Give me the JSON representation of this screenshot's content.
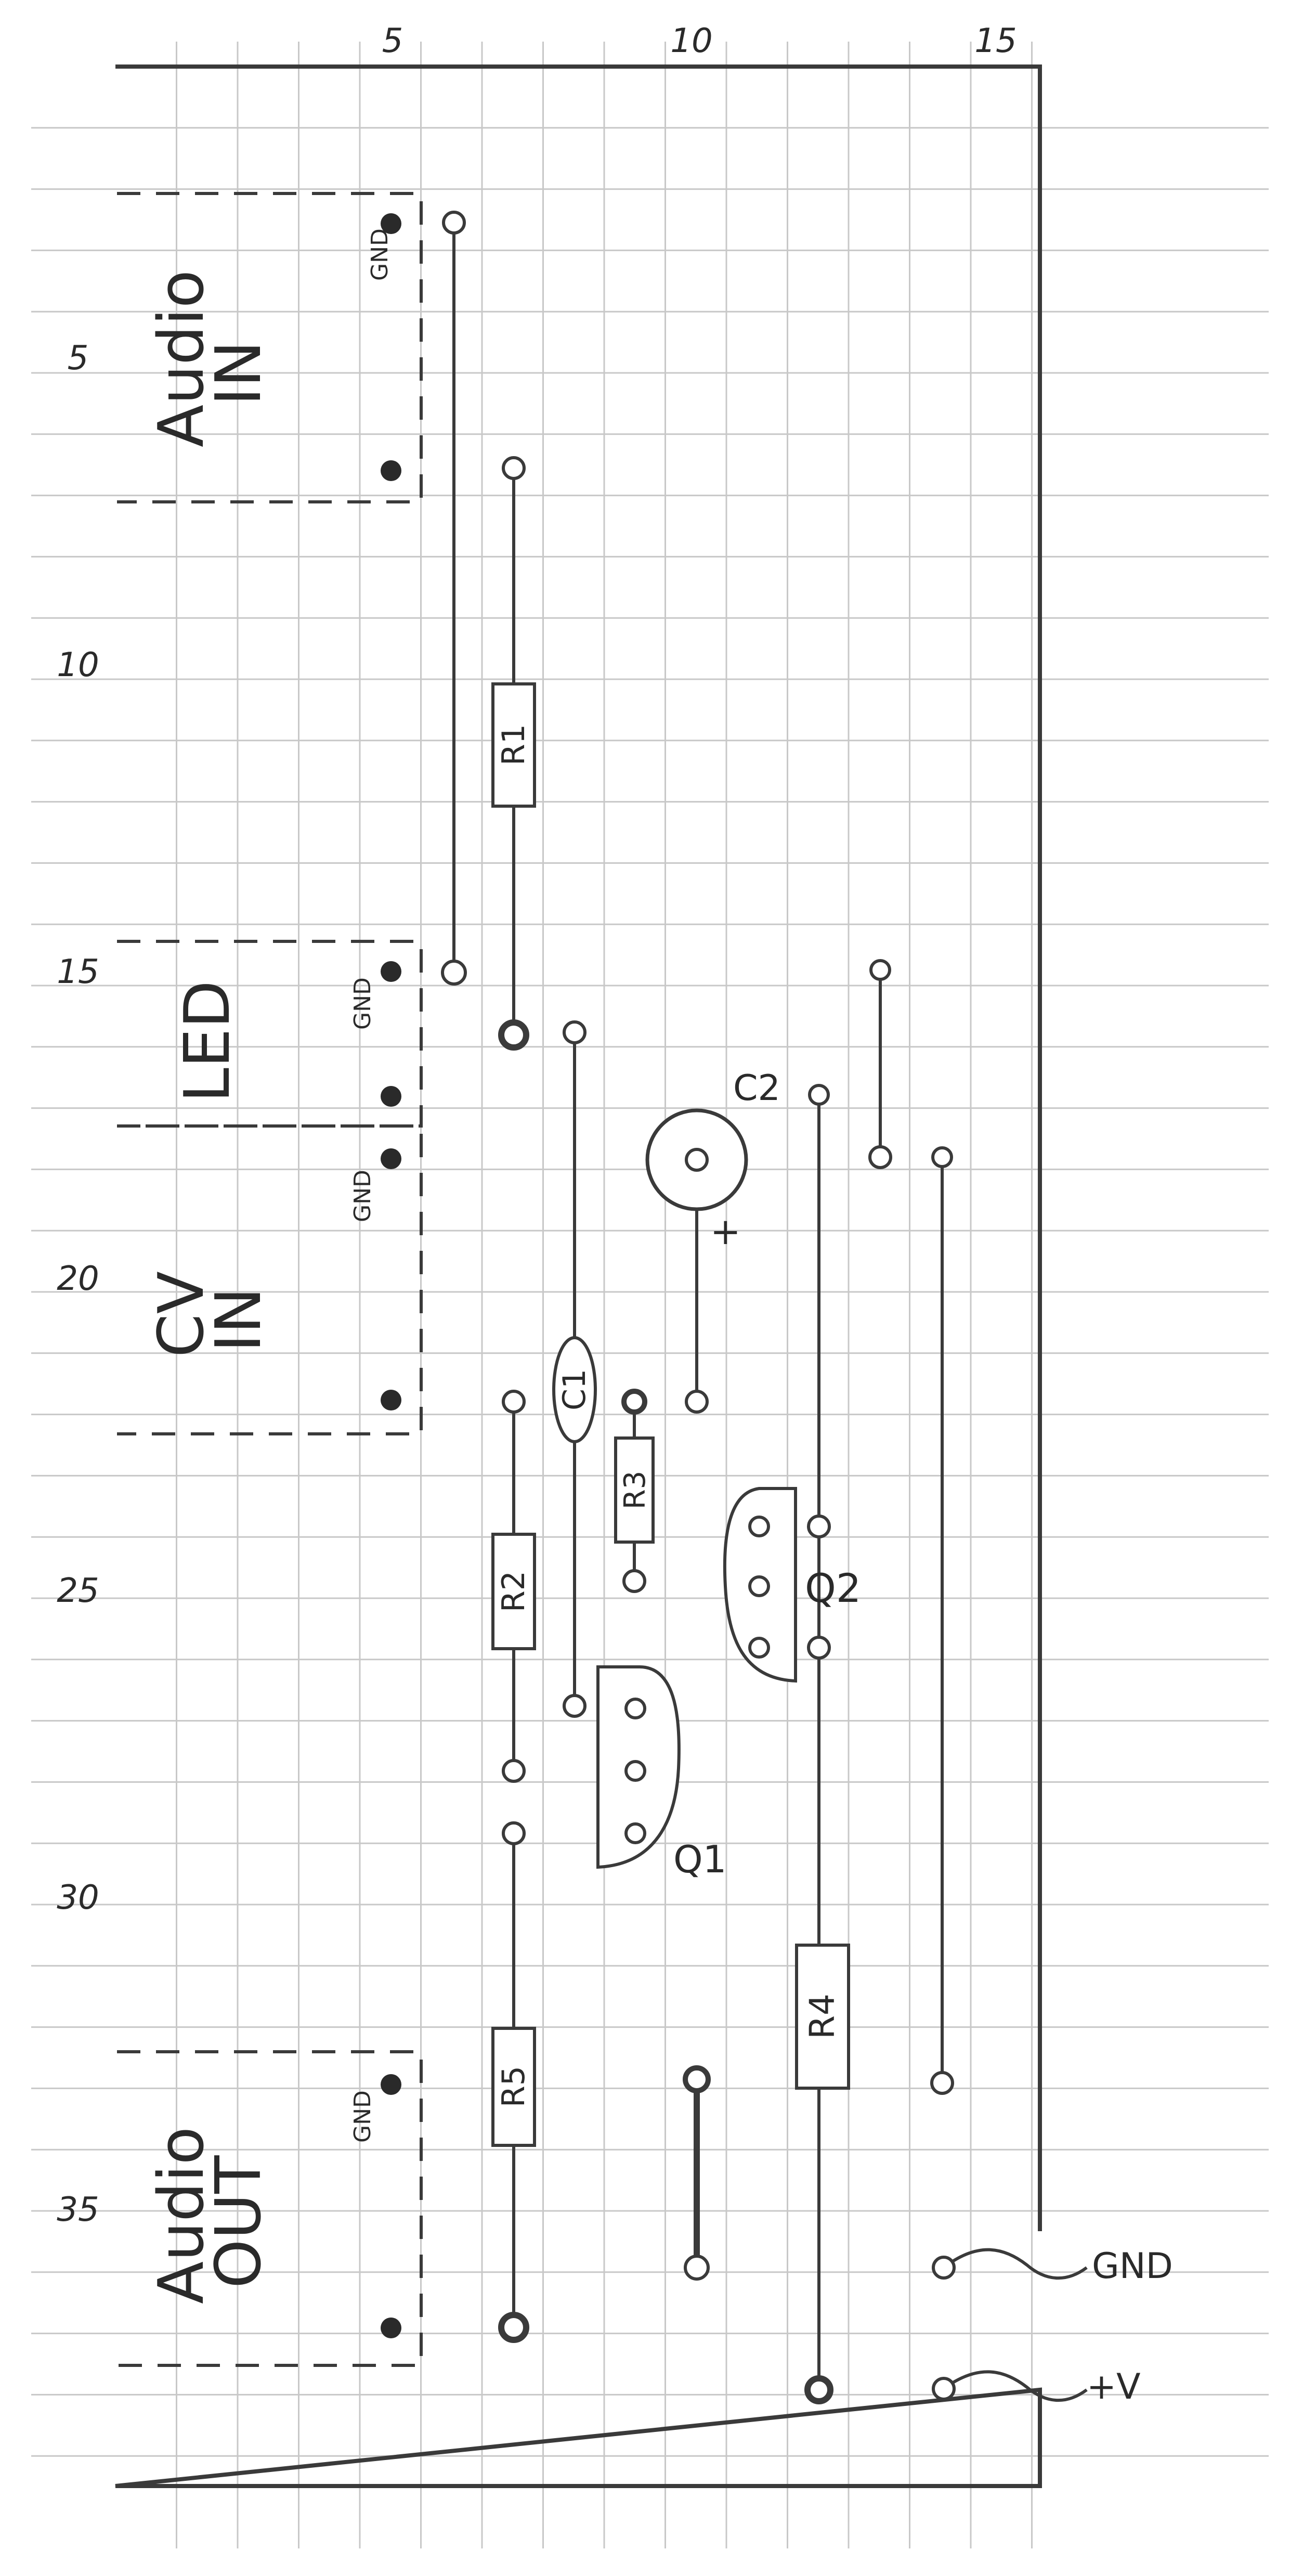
{
  "top_ruler": [
    "5",
    "10",
    "15"
  ],
  "side_ruler": [
    "5",
    "10",
    "15",
    "20",
    "25",
    "30",
    "35"
  ],
  "blocks": {
    "audio_in": {
      "line1": "Audio",
      "line2": "IN",
      "gnd": "GND"
    },
    "led": {
      "line1": "LED",
      "gnd": "GND"
    },
    "cv_in": {
      "line1": "CV",
      "line2": "IN",
      "gnd": "GND"
    },
    "audio_out": {
      "line1": "Audio",
      "line2": "OUT",
      "gnd": "GND"
    }
  },
  "components": {
    "r1": "R1",
    "r2": "R2",
    "r3": "R3",
    "r4": "R4",
    "r5": "R5",
    "c1": "C1",
    "c2": "C2",
    "c2_polarity": "+",
    "q1": "Q1",
    "q2": "Q2"
  },
  "power": {
    "gnd": "GND",
    "vplus": "+V"
  },
  "colors": {
    "ink": "#3a3a3a",
    "grid": "#c8c8c8",
    "paper": "#ffffff"
  }
}
